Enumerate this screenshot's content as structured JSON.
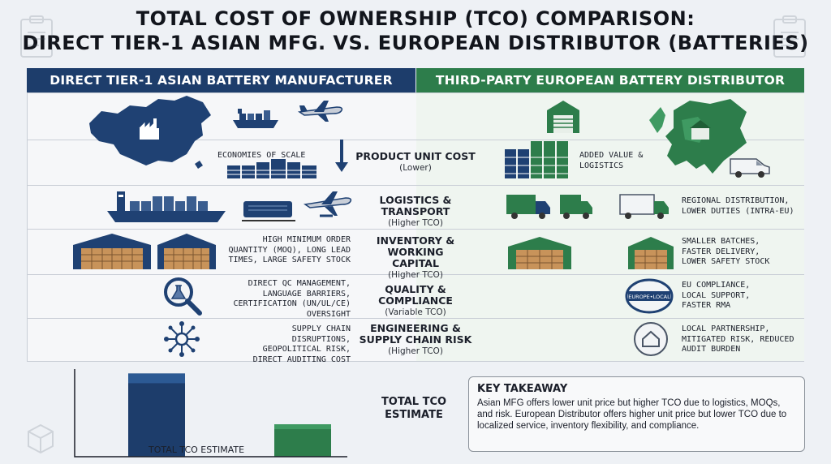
{
  "title": {
    "line1": "Total Cost of Ownership (TCO) Comparison:",
    "line2": "Direct Tier-1 Asian MFG. vs. European Distributor (Batteries)"
  },
  "columns": {
    "left_header": "Direct Tier-1 Asian Battery Manufacturer",
    "right_header": "Third-Party European Battery Distributor"
  },
  "colors": {
    "left": "#1d3d6b",
    "right": "#2d7d4b"
  },
  "rows": [
    {
      "category": "Product Unit Cost",
      "tco": "(Lower)",
      "left_note": [
        "Economies",
        "of scale"
      ],
      "right_note": "Added value & logistics",
      "left_icon": "china-map-factory-ship-plane-icon",
      "right_icon": "warehouse-europe-map-van-icon"
    },
    {
      "category": "Logistics & Transport",
      "tco": "(Higher TCO)",
      "left_note": "",
      "right_note": "Regional distribution, lower duties (intra-EU)",
      "left_icon": "container-ship-train-plane-icon",
      "right_icon": "truck-icon"
    },
    {
      "category": "Inventory & Working Capital",
      "tco": "(Higher TCO)",
      "left_note": "High minimum order quantity (MOQ), long lead times, large safety stock",
      "right_note": "Smaller batches, faster delivery, lower safety stock",
      "left_icon": "warehouse-icon",
      "right_icon": "warehouse-icon"
    },
    {
      "category": "Quality & Compliance",
      "tco": "(Variable TCO)",
      "left_note": "Direct QC management, language barriers, certification (UN/UL/CE) oversight",
      "right_note": "EU compliance, local support, faster RMA",
      "left_icon": "magnifier-flask-icon",
      "right_icon": "compliance-stamp-icon"
    },
    {
      "category": "Engineering & Supply Chain Risk",
      "tco": "(Higher TCO)",
      "left_note": "Supply chain disruptions, geopolitical risk, direct auditing cost",
      "right_note": "Local partnership, mitigated risk, reduced audit burden",
      "left_icon": "network-hub-icon",
      "right_icon": "house-shield-icon"
    }
  ],
  "chart_data": {
    "type": "bar",
    "categories": [
      "Total TCO Estimate"
    ],
    "series": [
      {
        "name": "",
        "values": [
          95
        ]
      },
      {
        "name": "",
        "values": [
          37
        ]
      }
    ],
    "xlabel": "Total TCO Estimate",
    "ylabel": "",
    "ylim": [
      0,
      100
    ],
    "grid": false
  },
  "chart_side_label": "Total TCO Estimate",
  "stamp_text": "EUROPE•LOCAL",
  "takeaway": {
    "title": "Key Takeaway",
    "body": "Asian MFG offers lower unit price but higher TCO due to logistics, MOQs, and risk. European Distributor offers higher unit price but lower TCO due to localized service, inventory flexibility, and compliance."
  }
}
